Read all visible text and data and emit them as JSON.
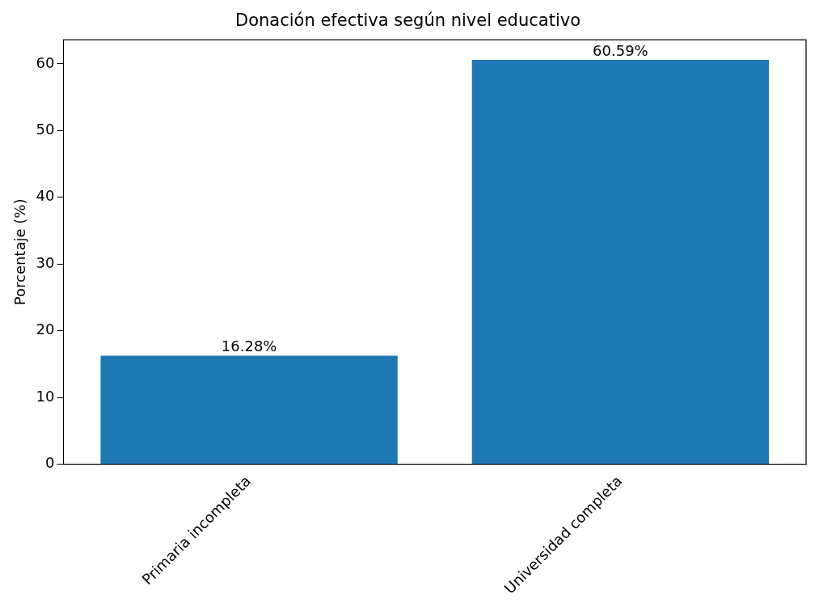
{
  "chart_data": {
    "type": "bar",
    "title": "Donación efectiva según nivel educativo",
    "ylabel": "Porcentaje (%)",
    "categories": [
      "Primaria incompleta",
      "Universidad completa"
    ],
    "values": [
      16.28,
      60.59
    ],
    "value_labels": [
      "16.28%",
      "60.59%"
    ],
    "color": "#1f77b4",
    "ylim": [
      0,
      63.6
    ],
    "yticks": [
      0,
      10,
      20,
      30,
      40,
      50,
      60
    ],
    "grid": false,
    "legend": false
  }
}
